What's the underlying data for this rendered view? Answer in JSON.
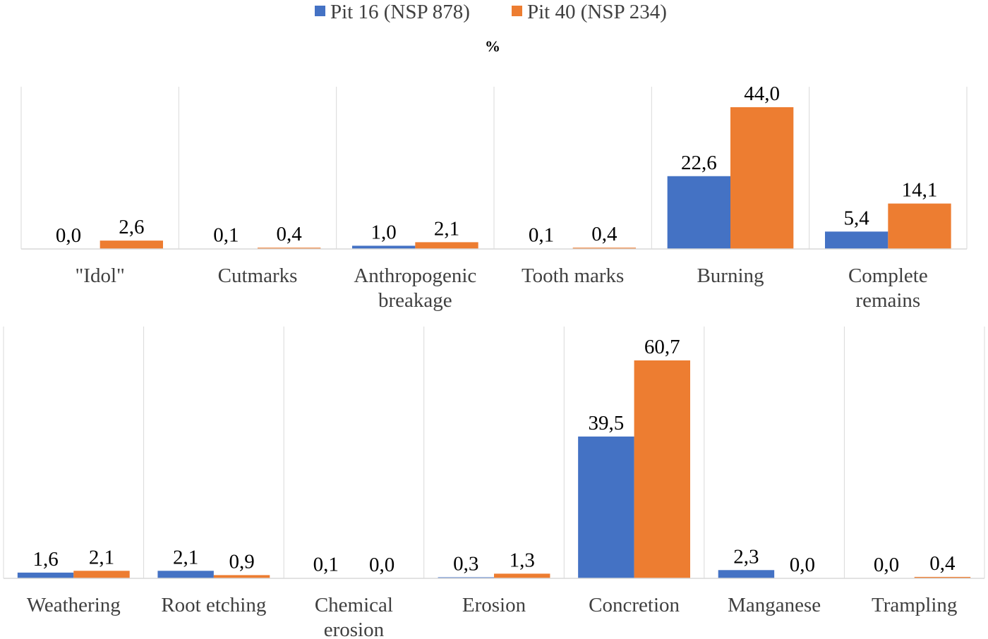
{
  "legend": {
    "series1": "Pit 16 (NSP 878)",
    "series2": "Pit 40 (NSP 234)"
  },
  "ylabel": "%",
  "colors": {
    "series1": "#4472C4",
    "series2": "#ED7D31",
    "grid": "#D9D9D9",
    "axis": "#D9D9D9"
  },
  "chart_data": [
    {
      "type": "bar",
      "title": "",
      "ylabel": "%",
      "ylim": [
        0,
        52
      ],
      "categories": [
        [
          "\"Idol\""
        ],
        [
          "Cutmarks"
        ],
        [
          "Anthropogenic",
          "breakage"
        ],
        [
          "Tooth marks"
        ],
        [
          "Burning"
        ],
        [
          "Complete",
          "remains"
        ]
      ],
      "series": [
        {
          "name": "Pit 16 (NSP 878)",
          "values": [
            0.0,
            0.1,
            1.0,
            0.1,
            22.6,
            5.4
          ],
          "labels": [
            "0,0",
            "0,1",
            "1,0",
            "0,1",
            "22,6",
            "5,4"
          ]
        },
        {
          "name": "Pit 40 (NSP 234)",
          "values": [
            2.6,
            0.4,
            2.1,
            0.4,
            44.0,
            14.1
          ],
          "labels": [
            "2,6",
            "0,4",
            "2,1",
            "0,4",
            "44,0",
            "14,1"
          ]
        }
      ]
    },
    {
      "type": "bar",
      "title": "",
      "ylabel": "",
      "ylim": [
        0,
        70
      ],
      "categories": [
        [
          "Weathering"
        ],
        [
          "Root etching"
        ],
        [
          "Chemical",
          "erosion"
        ],
        [
          "Erosion"
        ],
        [
          "Concretion"
        ],
        [
          "Manganese"
        ],
        [
          "Trampling"
        ]
      ],
      "series": [
        {
          "name": "Pit 16 (NSP 878)",
          "values": [
            1.6,
            2.1,
            0.1,
            0.3,
            39.5,
            2.3,
            0.0
          ],
          "labels": [
            "1,6",
            "2,1",
            "0,1",
            "0,3",
            "39,5",
            "2,3",
            "0,0"
          ]
        },
        {
          "name": "Pit 40 (NSP 234)",
          "values": [
            2.1,
            0.9,
            0.0,
            1.3,
            60.7,
            0.0,
            0.4
          ],
          "labels": [
            "2,1",
            "0,9",
            "0,0",
            "1,3",
            "60,7",
            "0,0",
            "0,4"
          ]
        }
      ]
    }
  ]
}
